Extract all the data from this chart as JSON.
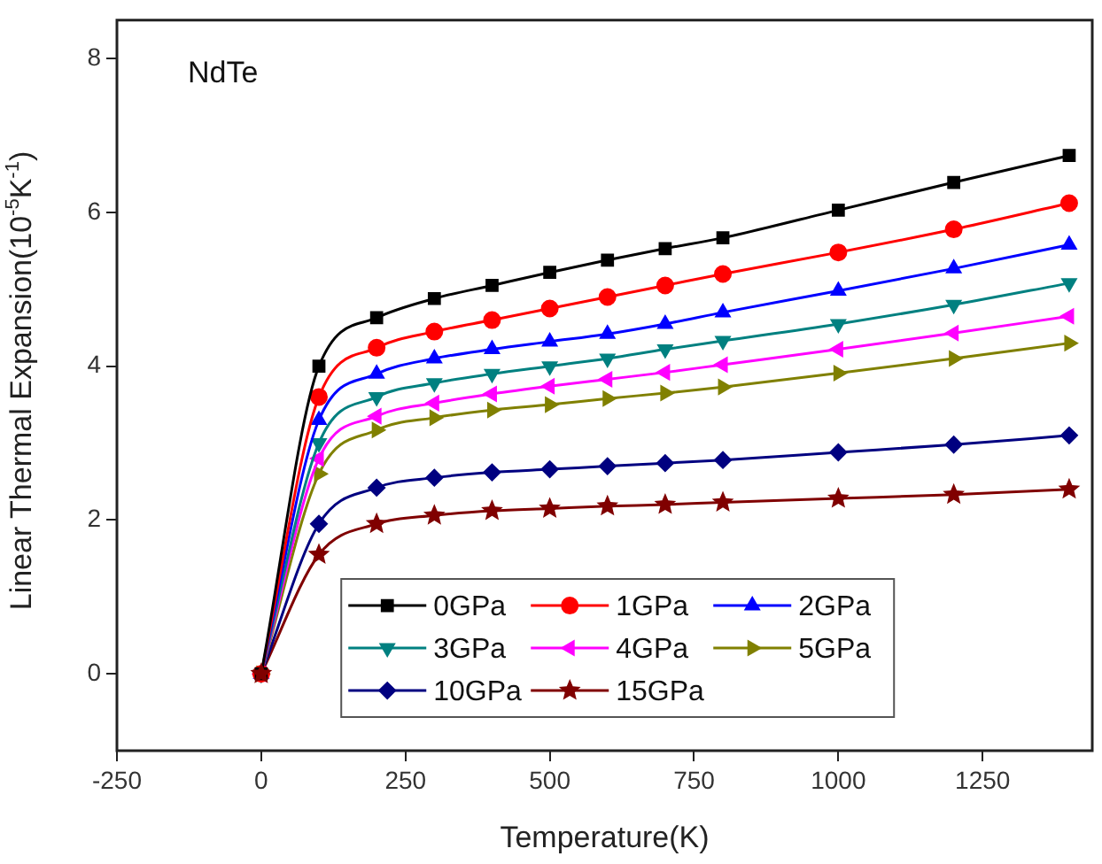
{
  "chart_data": {
    "type": "line",
    "xlabel": "Temperature(K)",
    "ylabel": "Linear Thermal Expansion(10$^{-5}$K$^{-1}$)",
    "annotations": [
      "NdTe"
    ],
    "x": [
      0,
      100,
      200,
      300,
      400,
      500,
      600,
      700,
      800,
      1000,
      1200,
      1400
    ],
    "xlim": [
      -250,
      1440
    ],
    "xticks": [
      -250,
      0,
      250,
      500,
      750,
      1000,
      1250
    ],
    "ylim": [
      -1,
      8.5
    ],
    "yticks": [
      0,
      2,
      4,
      6,
      8
    ],
    "grid": false,
    "legend": "bottom",
    "line_style": "solid",
    "series": [
      {
        "name": "0GPa",
        "color": "#000000",
        "marker": "square",
        "values": [
          0,
          4.0,
          4.63,
          4.88,
          5.05,
          5.22,
          5.38,
          5.53,
          5.67,
          6.03,
          6.39,
          6.74
        ]
      },
      {
        "name": "1GPa",
        "color": "#ff0000",
        "marker": "circle",
        "values": [
          0,
          3.6,
          4.24,
          4.45,
          4.6,
          4.75,
          4.9,
          5.05,
          5.2,
          5.48,
          5.78,
          6.12
        ]
      },
      {
        "name": "2GPa",
        "color": "#0000ff",
        "marker": "triangle",
        "values": [
          0,
          3.3,
          3.9,
          4.1,
          4.22,
          4.32,
          4.42,
          4.55,
          4.7,
          4.98,
          5.27,
          5.58
        ]
      },
      {
        "name": "3GPa",
        "color": "#008080",
        "marker": "triangle",
        "values": [
          0,
          3.0,
          3.6,
          3.78,
          3.9,
          4.0,
          4.1,
          4.22,
          4.33,
          4.55,
          4.8,
          5.08
        ]
      },
      {
        "name": "4GPa",
        "color": "#ff00ff",
        "marker": "triangle",
        "values": [
          0,
          2.8,
          3.35,
          3.52,
          3.64,
          3.74,
          3.83,
          3.92,
          4.02,
          4.22,
          4.43,
          4.65
        ]
      },
      {
        "name": "5GPa",
        "color": "#808000",
        "marker": "triangle",
        "values": [
          0,
          2.6,
          3.17,
          3.33,
          3.43,
          3.5,
          3.58,
          3.65,
          3.73,
          3.91,
          4.1,
          4.3
        ]
      },
      {
        "name": "10GPa",
        "color": "#000080",
        "marker": "diamond",
        "values": [
          0,
          1.95,
          2.42,
          2.55,
          2.62,
          2.66,
          2.7,
          2.74,
          2.78,
          2.88,
          2.98,
          3.1
        ]
      },
      {
        "name": "15GPa",
        "color": "#800000",
        "marker": "star",
        "values": [
          0,
          1.55,
          1.95,
          2.06,
          2.12,
          2.15,
          2.18,
          2.2,
          2.23,
          2.28,
          2.33,
          2.4
        ]
      }
    ]
  }
}
